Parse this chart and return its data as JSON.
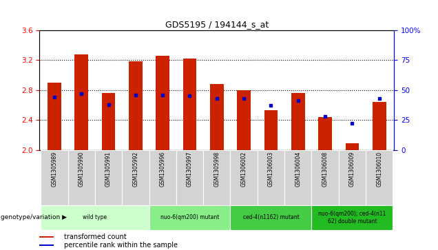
{
  "title": "GDS5195 / 194144_s_at",
  "samples": [
    "GSM1305989",
    "GSM1305990",
    "GSM1305991",
    "GSM1305992",
    "GSM1305996",
    "GSM1305997",
    "GSM1305998",
    "GSM1306002",
    "GSM1306003",
    "GSM1306004",
    "GSM1306008",
    "GSM1306009",
    "GSM1306010"
  ],
  "transformed_count": [
    2.9,
    3.27,
    2.76,
    3.18,
    3.26,
    3.22,
    2.88,
    2.8,
    2.53,
    2.76,
    2.44,
    2.09,
    2.64
  ],
  "percentile_rank": [
    44,
    47,
    38,
    46,
    46,
    45,
    43,
    43,
    37,
    41,
    28,
    22,
    43
  ],
  "ylim_left": [
    2.0,
    3.6
  ],
  "ylim_right": [
    0,
    100
  ],
  "yticks_left": [
    2.0,
    2.4,
    2.8,
    3.2,
    3.6
  ],
  "yticks_right": [
    0,
    25,
    50,
    75,
    100
  ],
  "bar_color": "#cc2200",
  "blue_color": "#0000cc",
  "bg_color": "#ffffff",
  "groups": [
    {
      "label": "wild type",
      "start": 0,
      "end": 3,
      "color": "#ccffcc"
    },
    {
      "label": "nuo-6(qm200) mutant",
      "start": 4,
      "end": 6,
      "color": "#88ee88"
    },
    {
      "label": "ced-4(n1162) mutant",
      "start": 7,
      "end": 9,
      "color": "#44cc44"
    },
    {
      "label": "nuo-6(qm200); ced-4(n11\n62) double mutant",
      "start": 10,
      "end": 12,
      "color": "#22bb22"
    }
  ],
  "legend_red_label": "transformed count",
  "legend_blue_label": "percentile rank within the sample",
  "genotype_label": "genotype/variation"
}
